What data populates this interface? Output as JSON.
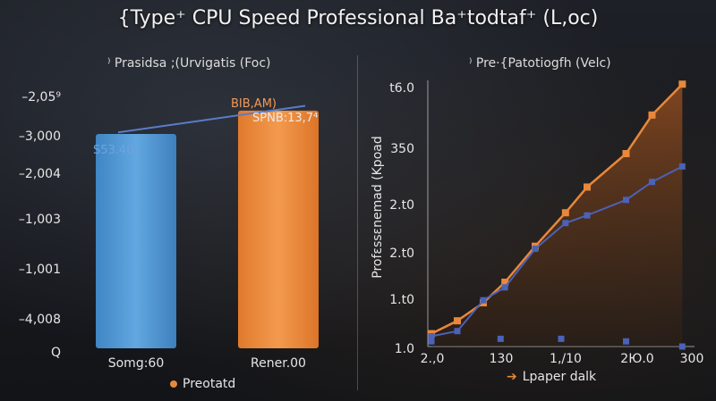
{
  "title": "{Type⁺ CPU Speed Professional Ba⁺todtaf⁺ (L,oc)",
  "left_subtitle": "⁾ Prasidsa ;(Urvigatis (Foc)",
  "right_subtitle": "⁾ Pre·{Patotiogfh (Velc)",
  "colors": {
    "blue_bar": "#4a92cf",
    "orange_bar": "#e8883a",
    "line_orange": "#e8883a",
    "line_blue": "#4a62b8"
  },
  "chart_data": [
    {
      "type": "bar",
      "title": "⁾ Prasidsa ;(Urvigatis (Foc)",
      "y_tick_labels": [
        "–2,05⁹",
        "–3,000",
        "–2,004",
        "–1,003",
        "–1,001",
        "–4,008",
        "Q"
      ],
      "categories": [
        "Somg:60",
        "Rener.00"
      ],
      "values": [
        4030,
        4470
      ],
      "ylim": [
        0,
        4870
      ],
      "annotations": [
        "S53.40\\",
        "BIB,AM)",
        "SPNB:13,7⁴"
      ],
      "trend_values": [
        4060,
        4560
      ],
      "legend": {
        "label": "Preotatd",
        "placement": "bottom-center"
      },
      "grid": false
    },
    {
      "type": "line",
      "title": "⁾ Pre·{Patotiogfh (Velc)",
      "ylabel": "Profɛssɛnemad (Kpoad",
      "x_tick_labels": [
        "2.,0",
        "130",
        "1,/10",
        "2Ю.0",
        "300"
      ],
      "y_tick_labels": [
        "t6.0",
        "350",
        "2.t0",
        "2.t0",
        "1.t0",
        "1.0"
      ],
      "xlim": [
        0,
        300
      ],
      "ylim": [
        1.0,
        6.0
      ],
      "series": [
        {
          "color": "#e8883a",
          "x": [
            0,
            30,
            60,
            85,
            120,
            155,
            180,
            225,
            255,
            290
          ],
          "y": [
            1.25,
            1.5,
            1.85,
            2.25,
            2.95,
            3.6,
            4.1,
            4.75,
            5.5,
            6.1
          ]
        },
        {
          "color": "#4a62b8",
          "x": [
            0,
            30,
            60,
            85,
            120,
            155,
            180,
            225,
            255,
            290
          ],
          "y": [
            1.2,
            1.3,
            1.9,
            2.15,
            2.9,
            3.4,
            3.55,
            3.85,
            4.2,
            4.5
          ]
        },
        {
          "color": "#4a62b8",
          "x": [
            0,
            80,
            150,
            225,
            290
          ],
          "y": [
            1.1,
            1.15,
            1.15,
            1.1,
            1.0
          ]
        }
      ],
      "legend": {
        "label": "Lpaper dalk",
        "placement": "bottom-center"
      },
      "grid": false
    }
  ]
}
